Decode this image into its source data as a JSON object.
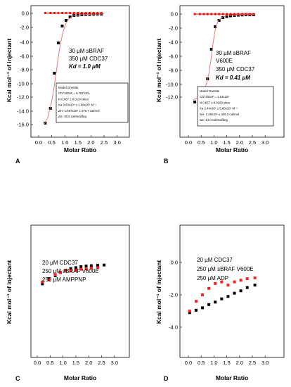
{
  "chart_data": [
    {
      "type": "scatter",
      "panel_label": "A",
      "xlabel": "Molar Ratio",
      "ylabel": "Kcal mol⁻¹ of injectant",
      "xlim": [
        -0.5,
        3.0
      ],
      "ylim": [
        -17,
        1
      ],
      "xticks": [
        "0.0",
        "0.5",
        "1.0",
        "1.5",
        "2.0",
        "2.5",
        "3.0"
      ],
      "yticks": [
        "0.0",
        "-2.0",
        "-4.0",
        "-6.0",
        "-8.0",
        "-10.0",
        "-12.0",
        "-14.0",
        "-16.0"
      ],
      "annotations": [
        "30 μM sBRAF",
        "350 μM CDC37",
        "Kd = 1.0 μM"
      ],
      "fit_box": [
        "Model OneSite",
        "Chi^2/DoF = 9.757x10⁴",
        "N 0.667 ± 0.0134 sites",
        "Ka 9.63x10⁵ ± 1.69x10⁵ M⁻¹",
        "ΔH -1.697x10⁴ ± 479.7 cal/mol",
        "ΔS -30.5 cal/mol/deg"
      ],
      "series": [
        {
          "role": "heats",
          "color": "#000000",
          "x": [
            0.25,
            0.45,
            0.6,
            0.75,
            0.9,
            1.05,
            1.2,
            1.35,
            1.5,
            1.65,
            1.8,
            1.95,
            2.1,
            2.25,
            2.4
          ],
          "y": [
            -15.6,
            -13.5,
            -8.5,
            -4.2,
            -1.8,
            -1.0,
            -0.5,
            -0.3,
            -0.25,
            -0.2,
            -0.15,
            -0.15,
            -0.12,
            -0.1,
            -0.1
          ]
        },
        {
          "role": "baseline",
          "color": "#ff0000",
          "x": [
            0.25,
            0.45,
            0.6,
            0.75,
            0.9,
            1.05,
            1.2,
            1.35,
            1.5,
            1.65,
            1.8,
            1.95,
            2.1,
            2.25,
            2.4
          ],
          "y": [
            0.05,
            0.05,
            0.05,
            0.05,
            0.05,
            0.05,
            0.05,
            0.05,
            0.05,
            0.05,
            0.05,
            0.05,
            0.05,
            0.05,
            0.05
          ]
        },
        {
          "role": "fit",
          "color": "#e07070",
          "x": [
            0.2,
            0.35,
            0.5,
            0.62,
            0.72,
            0.82,
            0.92,
            1.02,
            1.12,
            1.25,
            1.4,
            1.6,
            1.9,
            2.2,
            2.5
          ],
          "y": [
            -15.8,
            -14.8,
            -12.5,
            -9.8,
            -7.0,
            -4.6,
            -2.8,
            -1.6,
            -0.9,
            -0.5,
            -0.3,
            -0.2,
            -0.15,
            -0.12,
            -0.1
          ]
        }
      ]
    },
    {
      "type": "scatter",
      "panel_label": "B",
      "xlabel": "Molar Ratio",
      "ylabel": "Kcal mol⁻¹ of injectant",
      "xlim": [
        -0.5,
        3.0
      ],
      "ylim": [
        -13.5,
        1
      ],
      "xticks": [
        "0.0",
        "0.5",
        "1.0",
        "1.5",
        "2.0",
        "2.5",
        "3.0"
      ],
      "yticks": [
        "0.0",
        "-2.0",
        "-4.0",
        "-6.0",
        "-8.0",
        "-10.0",
        "-12.0"
      ],
      "annotations": [
        "30 μM sBRAF",
        "V600E",
        "350 μM CDC37",
        "Kd = 0.41 μM"
      ],
      "fit_box": [
        "Model OneSite",
        "Chi^2/DoF = 1.13x10⁵",
        "N 0.667 ± 0.0163 sites",
        "Ka 2.44x10⁶ ± 5.80x10⁵ M⁻¹",
        "ΔH -1.26x10⁴ ± 349.2 cal/mol",
        "ΔS -14.0 cal/mol/deg"
      ],
      "series": [
        {
          "role": "heats",
          "color": "#000000",
          "x": [
            0.25,
            0.45,
            0.6,
            0.75,
            0.9,
            1.05,
            1.2,
            1.35,
            1.5,
            1.65,
            1.8,
            1.95,
            2.1,
            2.25,
            2.4,
            2.55
          ],
          "y": [
            -12.5,
            -11.3,
            -10.6,
            -9.2,
            -5.0,
            -1.8,
            -0.9,
            -0.5,
            -0.35,
            -0.25,
            -0.2,
            -0.15,
            -0.12,
            -0.1,
            -0.1,
            -0.1
          ]
        },
        {
          "role": "baseline",
          "color": "#ff0000",
          "x": [
            0.25,
            0.45,
            0.6,
            0.75,
            0.9,
            1.05,
            1.2,
            1.35,
            1.5,
            1.65,
            1.8,
            1.95,
            2.1,
            2.25,
            2.4,
            2.55
          ],
          "y": [
            0.0,
            0.0,
            0.0,
            0.0,
            0.0,
            0.0,
            0.0,
            0.0,
            0.0,
            0.0,
            0.0,
            0.0,
            0.0,
            0.0,
            0.0,
            0.0
          ]
        },
        {
          "role": "fit",
          "color": "#e07070",
          "x": [
            0.2,
            0.4,
            0.55,
            0.7,
            0.8,
            0.88,
            0.95,
            1.02,
            1.1,
            1.2,
            1.35,
            1.55,
            1.8,
            2.1,
            2.6
          ],
          "y": [
            -12.2,
            -11.8,
            -11.2,
            -10.0,
            -8.5,
            -6.5,
            -4.5,
            -2.8,
            -1.5,
            -0.8,
            -0.4,
            -0.2,
            -0.15,
            -0.1,
            -0.1
          ]
        }
      ]
    },
    {
      "type": "scatter",
      "panel_label": "C",
      "xlabel": "Molar Ratio",
      "ylabel": "Kcal mol⁻¹ of injectant",
      "xlim": [
        -0.3,
        3.0
      ],
      "ylim": [
        -5,
        0.3
      ],
      "xticks": [
        "0.0",
        "0.5",
        "1.0",
        "1.5",
        "2.0",
        "2.5",
        "3.0"
      ],
      "yticks": [],
      "annotations": [
        "20 μM CDC37",
        "250 μM sBRAF V600E",
        "250 μM AMPPNP"
      ],
      "series": [
        {
          "role": "black",
          "color": "#000000",
          "x": [
            0.2,
            0.45,
            0.7,
            0.9,
            1.1,
            1.3,
            1.5,
            1.7,
            1.9,
            2.1,
            2.35,
            2.6
          ],
          "y": [
            -1.32,
            -1.0,
            -0.82,
            -0.62,
            -0.48,
            -0.38,
            -0.32,
            -0.26,
            -0.22,
            -0.2,
            -0.18,
            -0.16
          ]
        },
        {
          "role": "red",
          "color": "#ff2020",
          "x": [
            0.2,
            0.45,
            0.7,
            0.9,
            1.1,
            1.3,
            1.5,
            1.7,
            1.9,
            2.1,
            2.35
          ],
          "y": [
            -1.2,
            -1.08,
            -0.75,
            -0.62,
            -0.5,
            -0.52,
            -0.48,
            -0.42,
            -0.4,
            -0.35,
            -0.32
          ]
        }
      ]
    },
    {
      "type": "scatter",
      "panel_label": "D",
      "xlabel": "Molar Ratio",
      "ylabel": "Kcal mol⁻¹ of injectant",
      "xlim": [
        -0.3,
        3.0
      ],
      "ylim": [
        -5,
        0.3
      ],
      "xticks": [
        "0.0",
        "0.5",
        "1.0",
        "1.5",
        "2.0",
        "2.5",
        "3.0"
      ],
      "yticks": [
        "0.0",
        "-2.0",
        "-4.0"
      ],
      "annotations": [
        "20 μM CDC37",
        "250 μM sBRAF V600E",
        "250 μM ADP"
      ],
      "series": [
        {
          "role": "black",
          "color": "#000000",
          "x": [
            0.05,
            0.3,
            0.55,
            0.8,
            1.05,
            1.3,
            1.55,
            1.8,
            2.05,
            2.3,
            2.6
          ],
          "y": [
            -3.1,
            -2.95,
            -2.8,
            -2.6,
            -2.45,
            -2.25,
            -2.1,
            -1.9,
            -1.75,
            -1.55,
            -1.4
          ]
        },
        {
          "role": "red",
          "color": "#ff2020",
          "x": [
            0.05,
            0.3,
            0.55,
            0.8,
            1.05,
            1.3,
            1.55,
            1.8,
            2.05,
            2.3,
            2.6
          ],
          "y": [
            -3.0,
            -2.4,
            -2.0,
            -1.6,
            -1.3,
            -1.2,
            -1.4,
            -1.2,
            -1.1,
            -1.0,
            -0.95
          ]
        }
      ]
    }
  ]
}
